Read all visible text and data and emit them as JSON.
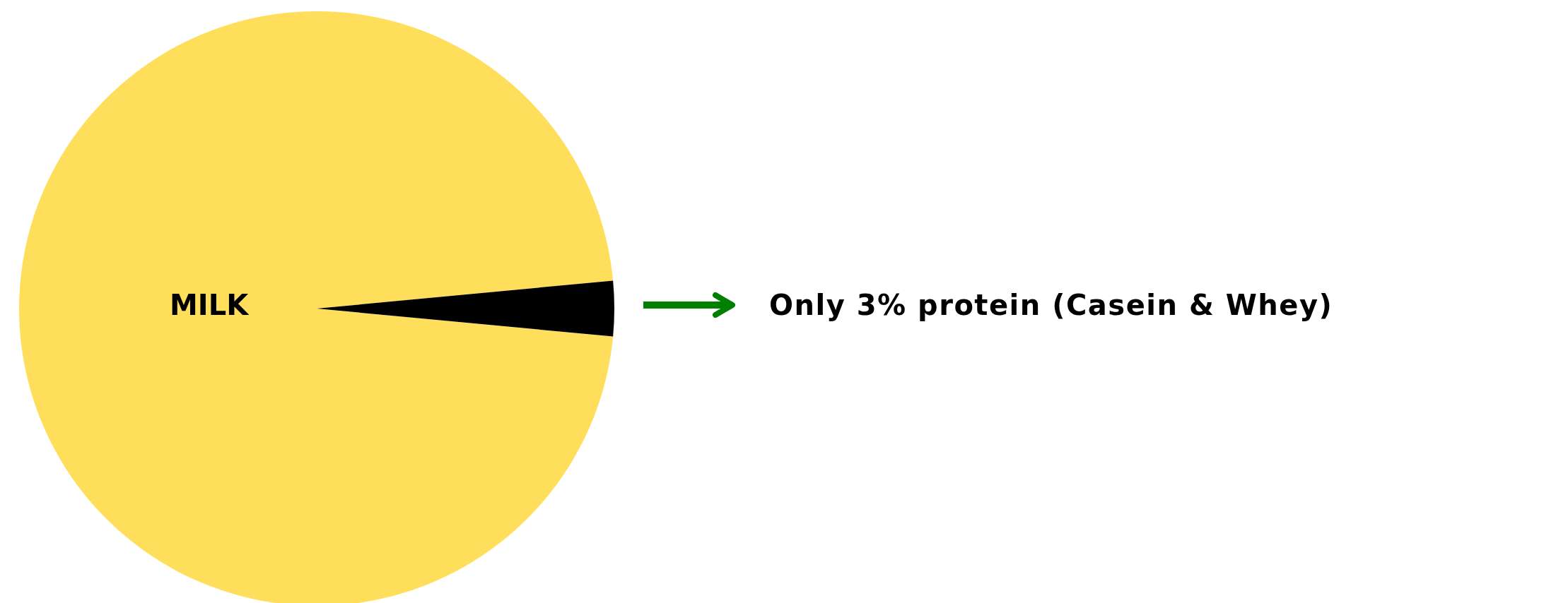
{
  "chart_data": {
    "type": "pie",
    "categories": [
      null,
      null
    ],
    "values": [
      97,
      3
    ],
    "colors": [
      "#fede5a",
      "#000000"
    ],
    "annotations": [
      "MILK",
      "Only 3% protein (Casein & Whey)"
    ],
    "legend": false
  }
}
